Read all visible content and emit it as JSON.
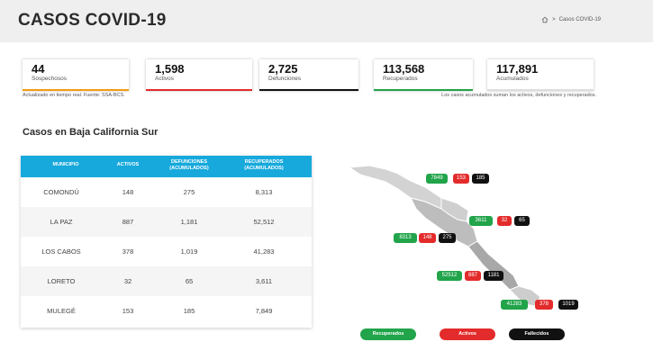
{
  "header": {
    "title": "CASOS COVID-19",
    "breadcrumb_sep": ">",
    "breadcrumb_current": "Casos COVID-19"
  },
  "stats": [
    {
      "value": "44",
      "label": "Sospechosos",
      "color": "#f39c12"
    },
    {
      "value": "1,598",
      "label": "Activos",
      "color": "#e32b2b"
    },
    {
      "value": "2,725",
      "label": "Defunciones",
      "color": "#111111"
    },
    {
      "value": "113,568",
      "label": "Recuperados",
      "color": "#21a44a"
    },
    {
      "value": "117,891",
      "label": "Acumulados",
      "color": "#dddddd"
    }
  ],
  "notes": {
    "left": "Actualizado en tiempo real. Fuente: SSA-BCS.",
    "right": "Los casos acumulados suman los activos, defunciones y recuperados."
  },
  "section_title": "Casos en Baja California Sur",
  "table": {
    "headers": [
      "MUNICIPIO",
      "ACTIVOS",
      "DEFUNCIONES (ACUMULADOS)",
      "RECUPERADOS (ACUMULADOS)"
    ],
    "rows": [
      [
        "COMONDÚ",
        "148",
        "275",
        "8,313"
      ],
      [
        "LA PAZ",
        "887",
        "1,181",
        "52,512"
      ],
      [
        "LOS CABOS",
        "378",
        "1,019",
        "41,283"
      ],
      [
        "LORETO",
        "32",
        "65",
        "3,611"
      ],
      [
        "MULEGÉ",
        "153",
        "185",
        "7,849"
      ]
    ]
  },
  "map": {
    "mulege": {
      "recuperados": "7849",
      "activos": "153",
      "fallecidos": "185"
    },
    "loreto": {
      "recuperados": "3611",
      "activos": "32",
      "fallecidos": "65"
    },
    "comondu": {
      "recuperados": "8313",
      "activos": "148",
      "fallecidos": "275"
    },
    "lapaz": {
      "recuperados": "52512",
      "activos": "887",
      "fallecidos": "1181"
    },
    "loscabos": {
      "recuperados": "41283",
      "activos": "378",
      "fallecidos": "1019"
    }
  },
  "legend": {
    "recuperados": "Recuperados",
    "activos": "Activos",
    "fallecidos": "Fallecidos"
  },
  "colors": {
    "header_bg": "#17a9dc",
    "green": "#21a44a",
    "red": "#e32b2b",
    "black": "#111111"
  }
}
